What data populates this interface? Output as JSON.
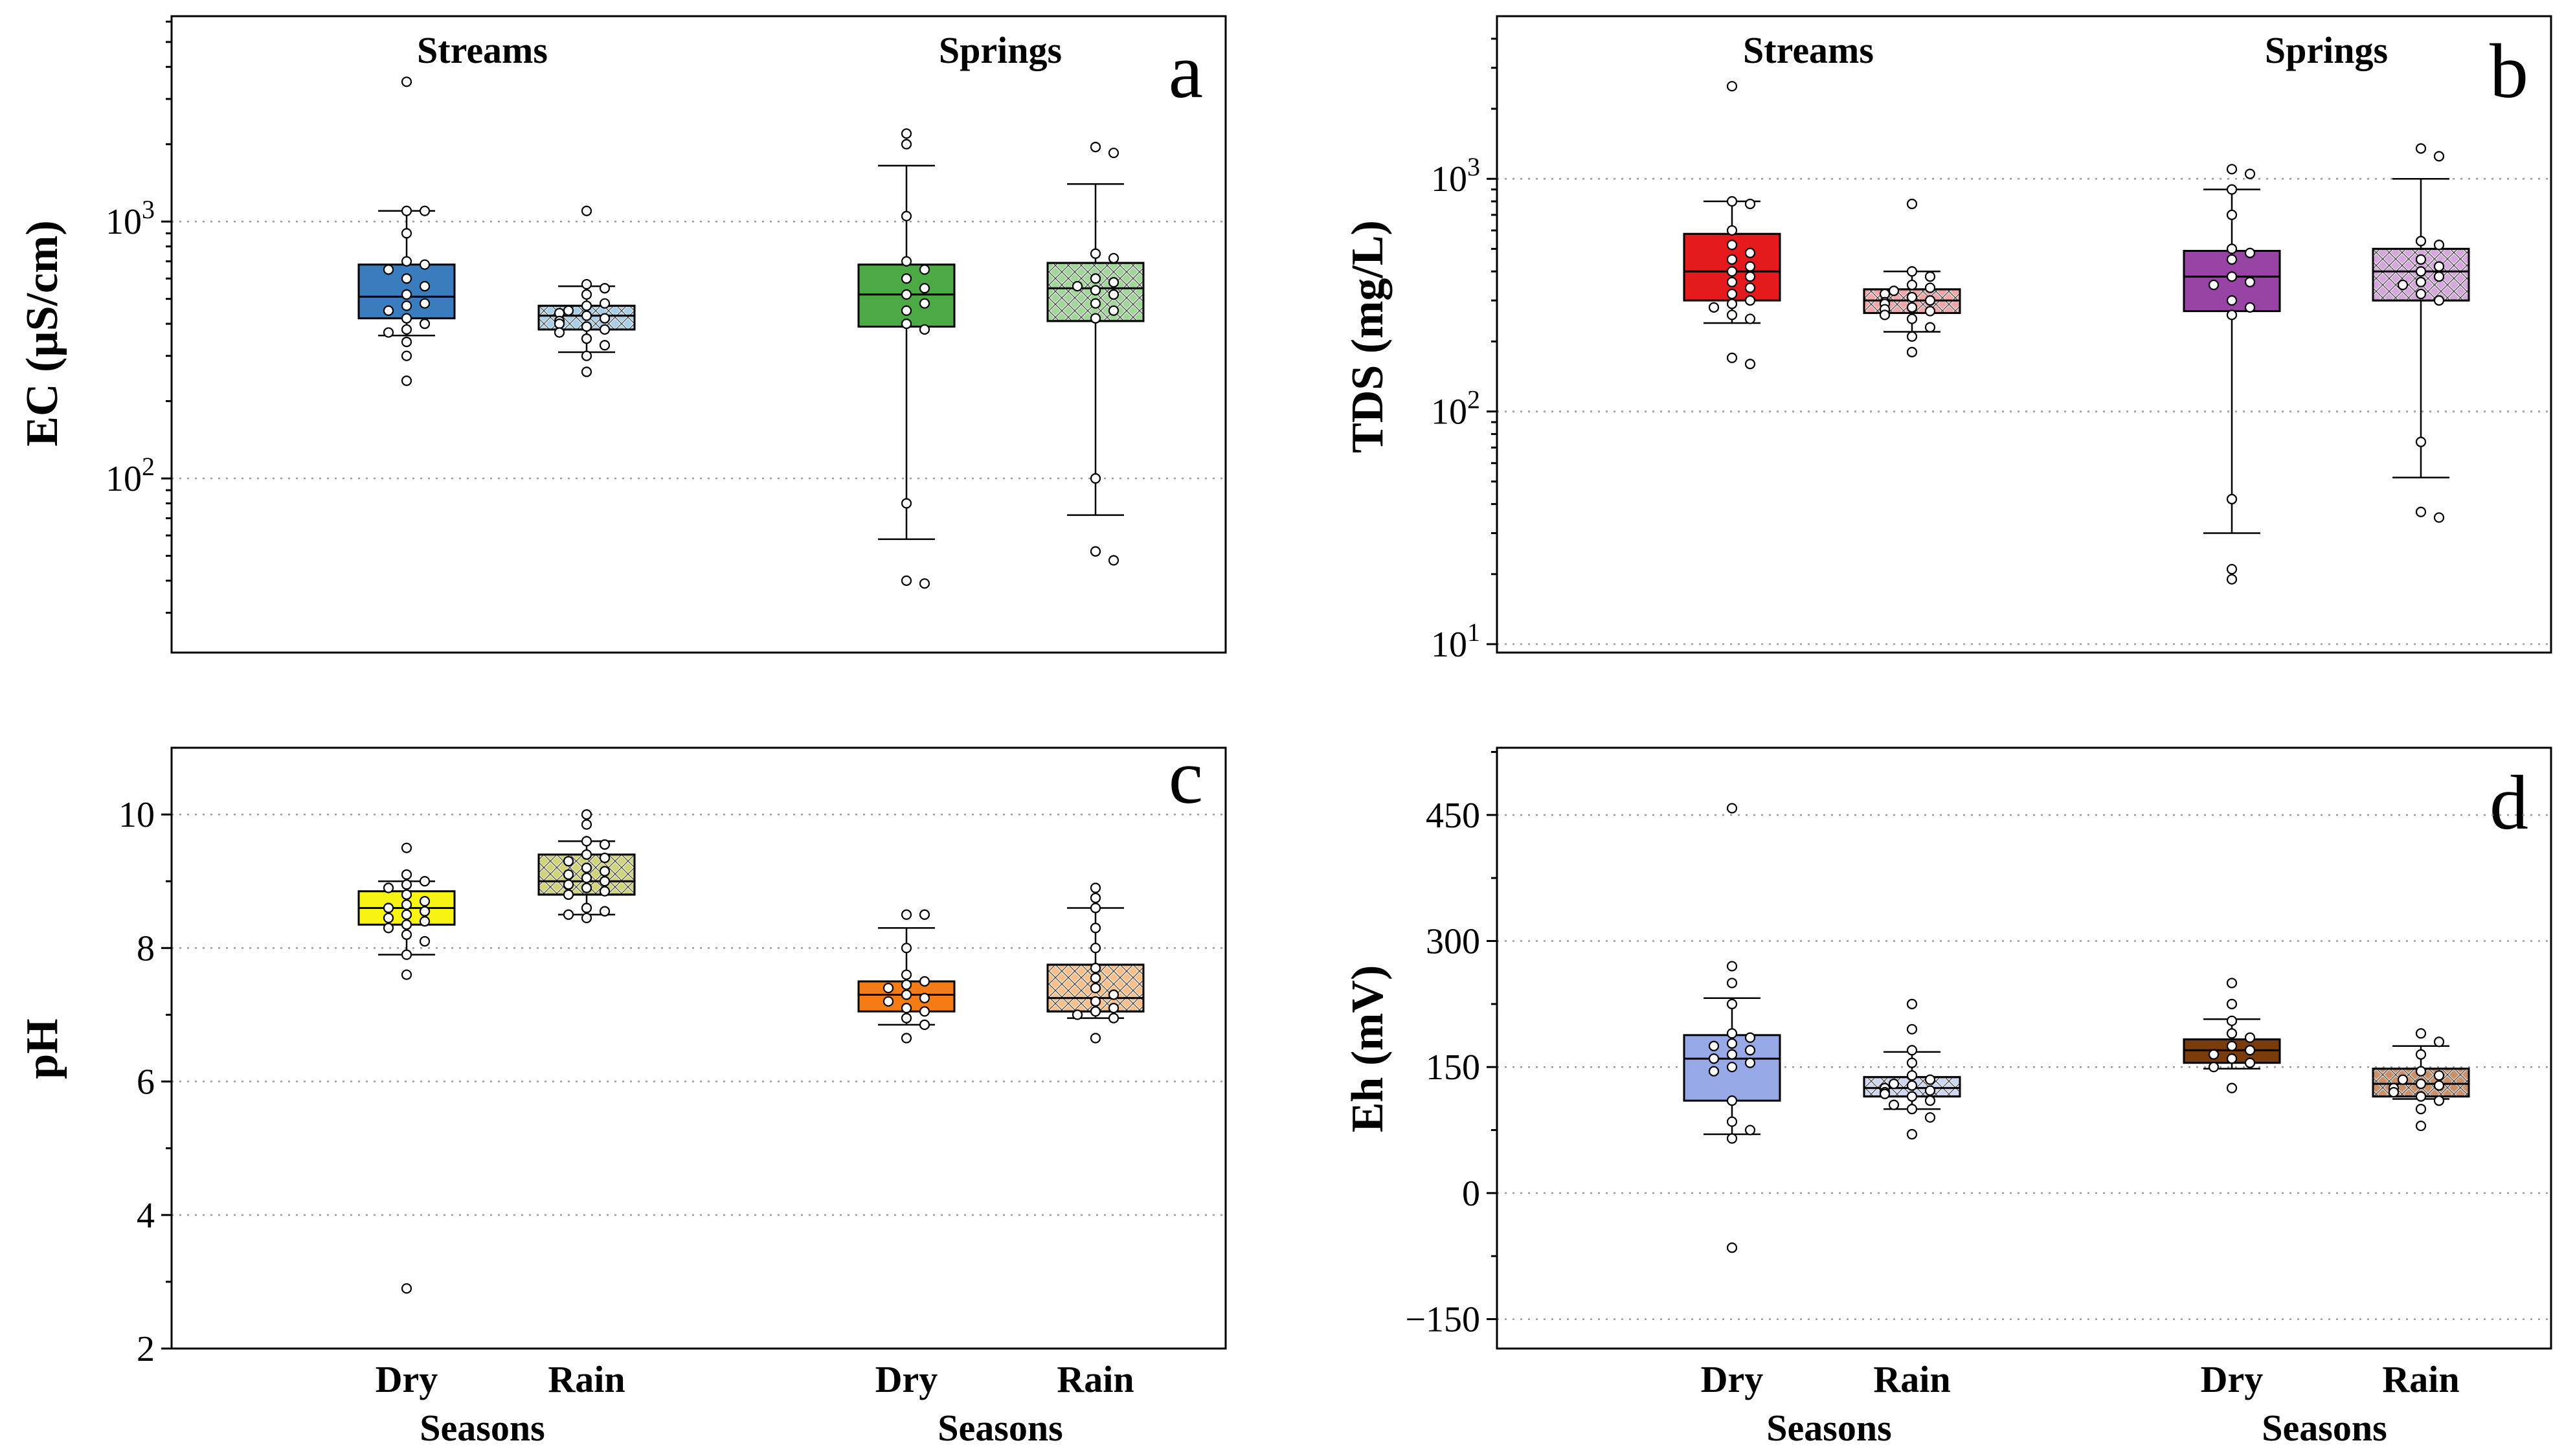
{
  "figure": {
    "group_titles": [
      "Streams",
      "Springs"
    ]
  },
  "chart_data": [
    {
      "type": "box",
      "panel": "a",
      "ylabel": "EC (µS/cm)",
      "xlabel": "Seasons",
      "yscale": "log",
      "ylim": [
        21,
        6300
      ],
      "yticks": [
        {
          "value": 100,
          "base": "10",
          "exp": "2"
        },
        {
          "value": 1000,
          "base": "10",
          "exp": "3"
        }
      ],
      "categories": [
        "Dry",
        "Rain",
        "Dry",
        "Rain"
      ],
      "groups": [
        "Streams",
        "Streams",
        "Springs",
        "Springs"
      ],
      "colors": [
        "#3a7dbf",
        "#a9cfe8",
        "#4caa45",
        "#a2d79a"
      ],
      "hatched": [
        false,
        true,
        false,
        true
      ],
      "boxes": [
        {
          "whislo": 360,
          "q1": 420,
          "med": 510,
          "q3": 680,
          "whishi": 1100
        },
        {
          "whislo": 310,
          "q1": 380,
          "med": 430,
          "q3": 470,
          "whishi": 560
        },
        {
          "whislo": 58,
          "q1": 390,
          "med": 520,
          "q3": 680,
          "whishi": 1650
        },
        {
          "whislo": 72,
          "q1": 410,
          "med": 550,
          "q3": 690,
          "whishi": 1400
        }
      ],
      "points": [
        [
          3500,
          1100,
          1100,
          900,
          700,
          680,
          650,
          600,
          560,
          520,
          480,
          470,
          450,
          420,
          400,
          380,
          370,
          340,
          300,
          240
        ],
        [
          1100,
          570,
          550,
          520,
          480,
          470,
          450,
          440,
          430,
          420,
          410,
          400,
          390,
          380,
          370,
          350,
          330,
          300,
          260
        ],
        [
          2200,
          2000,
          1050,
          700,
          650,
          600,
          550,
          520,
          480,
          450,
          400,
          380,
          80,
          40,
          39
        ],
        [
          1950,
          1850,
          750,
          720,
          600,
          580,
          560,
          540,
          520,
          480,
          450,
          420,
          100,
          52,
          48
        ]
      ]
    },
    {
      "type": "box",
      "panel": "b",
      "ylabel": "TDS (mg/L)",
      "xlabel": "Seasons",
      "yscale": "log",
      "ylim": [
        9.2,
        5000
      ],
      "yticks": [
        {
          "value": 10,
          "base": "10",
          "exp": "1"
        },
        {
          "value": 100,
          "base": "10",
          "exp": "2"
        },
        {
          "value": 1000,
          "base": "10",
          "exp": "3"
        }
      ],
      "categories": [
        "Dry",
        "Rain",
        "Dry",
        "Rain"
      ],
      "groups": [
        "Streams",
        "Streams",
        "Springs",
        "Springs"
      ],
      "colors": [
        "#e41a1c",
        "#f2a6a8",
        "#9a43a6",
        "#d5a8dc"
      ],
      "hatched": [
        false,
        true,
        false,
        true
      ],
      "boxes": [
        {
          "whislo": 240,
          "q1": 300,
          "med": 400,
          "q3": 580,
          "whishi": 800
        },
        {
          "whislo": 220,
          "q1": 265,
          "med": 300,
          "q3": 335,
          "whishi": 400
        },
        {
          "whislo": 30,
          "q1": 270,
          "med": 380,
          "q3": 490,
          "whishi": 900
        },
        {
          "whislo": 52,
          "q1": 300,
          "med": 400,
          "q3": 500,
          "whishi": 1000
        }
      ],
      "points": [
        [
          2500,
          800,
          780,
          600,
          520,
          480,
          450,
          420,
          400,
          380,
          360,
          340,
          320,
          300,
          290,
          280,
          260,
          250,
          170,
          160
        ],
        [
          780,
          400,
          380,
          350,
          340,
          330,
          320,
          310,
          300,
          295,
          290,
          280,
          275,
          270,
          260,
          250,
          230,
          210,
          180
        ],
        [
          1100,
          1050,
          900,
          700,
          500,
          480,
          450,
          380,
          360,
          350,
          300,
          280,
          260,
          42,
          21,
          19
        ],
        [
          1350,
          1250,
          540,
          520,
          450,
          420,
          400,
          380,
          360,
          350,
          320,
          300,
          74,
          37,
          35
        ]
      ]
    },
    {
      "type": "box",
      "panel": "c",
      "ylabel": "pH",
      "xlabel": "Seasons",
      "yscale": "linear",
      "ylim": [
        2,
        11
      ],
      "yticks": [
        {
          "value": 2,
          "label": "2"
        },
        {
          "value": 4,
          "label": "4"
        },
        {
          "value": 6,
          "label": "6"
        },
        {
          "value": 8,
          "label": "8"
        },
        {
          "value": 10,
          "label": "10"
        }
      ],
      "categories": [
        "Dry",
        "Rain",
        "Dry",
        "Rain"
      ],
      "groups": [
        "Streams",
        "Streams",
        "Springs",
        "Springs"
      ],
      "colors": [
        "#f7f414",
        "#cfd478",
        "#f57c14",
        "#fbc08a"
      ],
      "hatched": [
        false,
        true,
        false,
        true
      ],
      "boxes": [
        {
          "whislo": 7.9,
          "q1": 8.35,
          "med": 8.6,
          "q3": 8.85,
          "whishi": 9.0
        },
        {
          "whislo": 8.5,
          "q1": 8.8,
          "med": 9.0,
          "q3": 9.4,
          "whishi": 9.6
        },
        {
          "whislo": 6.85,
          "q1": 7.05,
          "med": 7.3,
          "q3": 7.5,
          "whishi": 8.3
        },
        {
          "whislo": 6.95,
          "q1": 7.05,
          "med": 7.25,
          "q3": 7.75,
          "whishi": 8.6
        }
      ],
      "points": [
        [
          9.5,
          9.1,
          9.0,
          8.95,
          8.9,
          8.8,
          8.7,
          8.65,
          8.6,
          8.55,
          8.5,
          8.45,
          8.4,
          8.35,
          8.3,
          8.2,
          8.1,
          7.9,
          7.6,
          2.9
        ],
        [
          10.0,
          9.85,
          9.6,
          9.55,
          9.4,
          9.35,
          9.3,
          9.2,
          9.15,
          9.1,
          9.05,
          9.0,
          8.95,
          8.9,
          8.85,
          8.8,
          8.6,
          8.55,
          8.5,
          8.45
        ],
        [
          8.5,
          8.5,
          8.0,
          7.6,
          7.5,
          7.45,
          7.4,
          7.3,
          7.25,
          7.2,
          7.1,
          7.05,
          6.95,
          6.85,
          6.65
        ],
        [
          8.9,
          8.75,
          8.6,
          8.3,
          8.0,
          7.7,
          7.55,
          7.4,
          7.3,
          7.2,
          7.1,
          7.05,
          7.0,
          6.95,
          6.65
        ]
      ]
    },
    {
      "type": "box",
      "panel": "d",
      "ylabel": "Eh (mV)",
      "xlabel": "Seasons",
      "yscale": "linear",
      "ylim": [
        -185,
        530
      ],
      "yticks": [
        {
          "value": -150,
          "label": "−150"
        },
        {
          "value": 0,
          "label": "0"
        },
        {
          "value": 150,
          "label": "150"
        },
        {
          "value": 300,
          "label": "300"
        },
        {
          "value": 450,
          "label": "450"
        }
      ],
      "categories": [
        "Dry",
        "Rain",
        "Dry",
        "Rain"
      ],
      "groups": [
        "Streams",
        "Streams",
        "Springs",
        "Springs"
      ],
      "colors": [
        "#97a8e6",
        "#cdd6f3",
        "#7a3c0a",
        "#c9906a"
      ],
      "hatched": [
        false,
        true,
        false,
        true
      ],
      "boxes": [
        {
          "whislo": 70,
          "q1": 110,
          "med": 160,
          "q3": 188,
          "whishi": 232
        },
        {
          "whislo": 100,
          "q1": 115,
          "med": 125,
          "q3": 138,
          "whishi": 168
        },
        {
          "whislo": 148,
          "q1": 155,
          "med": 170,
          "q3": 183,
          "whishi": 207
        },
        {
          "whislo": 112,
          "q1": 115,
          "med": 130,
          "q3": 148,
          "whishi": 175
        }
      ],
      "points": [
        [
          458,
          270,
          250,
          225,
          190,
          185,
          178,
          175,
          170,
          165,
          160,
          155,
          150,
          145,
          110,
          85,
          75,
          65,
          -65
        ],
        [
          225,
          195,
          170,
          155,
          140,
          135,
          130,
          128,
          125,
          122,
          120,
          118,
          115,
          110,
          105,
          100,
          90,
          70
        ],
        [
          250,
          225,
          205,
          190,
          185,
          175,
          170,
          165,
          160,
          155,
          150,
          125
        ],
        [
          190,
          180,
          165,
          145,
          140,
          135,
          130,
          128,
          125,
          120,
          115,
          110,
          100,
          80
        ]
      ]
    }
  ]
}
